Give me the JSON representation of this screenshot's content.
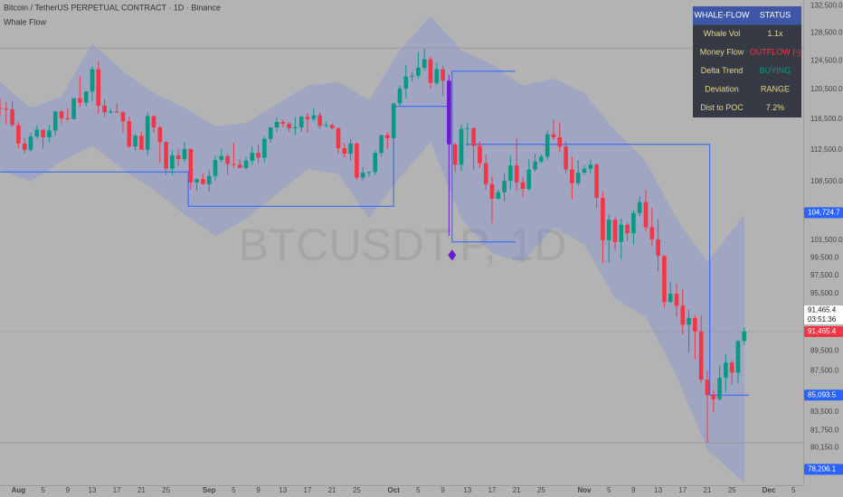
{
  "chart_data": {
    "type": "candlestick",
    "title": "Bitcoin / TetherUS PERPETUAL CONTRACT · 1D · Binance",
    "indicator": "Whale Flow",
    "watermark": "BTCUSDT.P, 1D",
    "categories": [
      null,
      null,
      null,
      "Aug",
      null,
      null,
      null,
      "5",
      null,
      null,
      null,
      "9",
      null,
      null,
      null,
      "13",
      null,
      null,
      null,
      "17",
      null,
      null,
      null,
      "21",
      null,
      null,
      null,
      "25",
      null,
      null,
      null,
      null,
      null,
      null,
      "Sep",
      null,
      null,
      null,
      "5",
      null,
      null,
      null,
      "9",
      null,
      null,
      null,
      "13",
      null,
      null,
      null,
      "17",
      null,
      null,
      null,
      "21",
      null,
      null,
      null,
      "25",
      null,
      null,
      null,
      null,
      null,
      "Oct",
      null,
      null,
      null,
      "5",
      null,
      null,
      null,
      "9",
      null,
      null,
      null,
      "13",
      null,
      null,
      null,
      "17",
      null,
      null,
      null,
      "21",
      null,
      null,
      null,
      "25",
      null,
      null,
      null,
      null,
      null,
      null,
      "Nov",
      null,
      null,
      null,
      "5",
      null,
      null,
      null,
      "9",
      null,
      null,
      null,
      "13",
      null,
      null,
      null,
      "17",
      null,
      null,
      null,
      "21",
      null,
      null,
      null,
      "25",
      null,
      null,
      null,
      null,
      null,
      "Dec",
      null,
      null,
      null,
      "5"
    ],
    "month_labels": [
      "Aug",
      "Sep",
      "Oct",
      "Nov",
      "Dec"
    ],
    "open": [
      118000,
      117900,
      117800,
      115700,
      113300,
      112500,
      114200,
      115100,
      114100,
      115000,
      117500,
      116600,
      116500,
      119300,
      118700,
      120200,
      123300,
      118300,
      117400,
      117500,
      117400,
      116200,
      112900,
      114300,
      112500,
      116900,
      115400,
      113500,
      110100,
      111800,
      111300,
      112600,
      108400,
      108800,
      108200,
      109200,
      111200,
      111700,
      110700,
      110600,
      110200,
      111100,
      112100,
      111500,
      113900,
      115400,
      116100,
      115900,
      115300,
      115400,
      116800,
      116500,
      117000,
      115600,
      115700,
      115300,
      112700,
      112000,
      113300,
      109000,
      109600,
      109700,
      112100,
      114400,
      114000,
      118600,
      120600,
      122300,
      122400,
      123500,
      124700,
      121400,
      123300,
      121700,
      113200,
      110600,
      115200,
      115300,
      113000,
      110800,
      108200,
      106400,
      107200,
      108600,
      110500,
      108400,
      107600,
      110000,
      111000,
      111600,
      114500,
      114100,
      112900,
      110000,
      108300,
      109600,
      110100,
      110600,
      106500,
      101500,
      103900,
      101300,
      103300,
      102300,
      104700,
      106000,
      103000,
      101600,
      99700,
      94600,
      95500,
      94200,
      92200,
      92900,
      91500,
      86600,
      85100,
      84700,
      86800,
      88300,
      87300,
      90500,
      null,
      null,
      null,
      null,
      null,
      null,
      null,
      null
    ],
    "high": [
      119200,
      118800,
      118900,
      116100,
      114000,
      114700,
      115700,
      115100,
      115700,
      117600,
      117700,
      117900,
      119300,
      122300,
      120300,
      123700,
      124500,
      119200,
      117900,
      118600,
      117600,
      116800,
      114600,
      114800,
      117400,
      117000,
      115600,
      113600,
      112400,
      112600,
      113500,
      112700,
      108900,
      109500,
      109900,
      111800,
      112600,
      112000,
      113400,
      111300,
      111600,
      112900,
      113200,
      114300,
      115400,
      116700,
      116400,
      116100,
      116700,
      117000,
      117300,
      117900,
      117400,
      116100,
      115900,
      115400,
      113300,
      113900,
      113500,
      110300,
      109800,
      112400,
      114400,
      114800,
      118600,
      121000,
      123900,
      122900,
      125700,
      126200,
      125100,
      124200,
      123800,
      122500,
      113400,
      115800,
      116000,
      115400,
      113600,
      111900,
      109200,
      107500,
      109500,
      111700,
      114000,
      109100,
      111300,
      112000,
      111900,
      115000,
      116400,
      116100,
      113600,
      111600,
      111200,
      110500,
      111200,
      110800,
      107300,
      104500,
      104200,
      104000,
      103500,
      105000,
      106700,
      107500,
      105300,
      104000,
      99800,
      96800,
      96600,
      96000,
      93800,
      93200,
      93200,
      87500,
      85600,
      88000,
      89200,
      88500,
      90600,
      91900,
      null,
      null,
      null,
      null,
      null,
      null,
      null,
      null
    ],
    "low": [
      116900,
      115800,
      115500,
      112700,
      112000,
      112200,
      114000,
      112600,
      113400,
      114300,
      115900,
      116300,
      116500,
      118100,
      118200,
      118900,
      117200,
      116800,
      117200,
      117300,
      114700,
      112700,
      112400,
      112600,
      111700,
      114700,
      110800,
      109300,
      109300,
      110400,
      110900,
      107500,
      107400,
      108100,
      107300,
      108600,
      110900,
      109300,
      110200,
      110200,
      110000,
      110600,
      110800,
      110900,
      113400,
      114800,
      115400,
      114800,
      114400,
      114800,
      114700,
      116200,
      115200,
      115400,
      115100,
      112000,
      111500,
      111100,
      108700,
      108600,
      109100,
      109300,
      111600,
      112600,
      113900,
      118200,
      119300,
      121600,
      122000,
      123100,
      120600,
      121100,
      119600,
      102000,
      109600,
      109800,
      113000,
      110000,
      110200,
      107500,
      103500,
      106300,
      106100,
      107500,
      107400,
      106600,
      107400,
      109700,
      110800,
      111200,
      113800,
      112200,
      109500,
      106300,
      108000,
      109400,
      109500,
      105300,
      98900,
      98900,
      100300,
      99300,
      101400,
      101000,
      104300,
      102500,
      100800,
      98000,
      94000,
      94500,
      93000,
      91200,
      89300,
      88600,
      86300,
      80600,
      83500,
      84600,
      85300,
      86100,
      86300,
      90100,
      null,
      null,
      null,
      null,
      null,
      null,
      null,
      null
    ],
    "close": [
      117900,
      117800,
      115700,
      113300,
      112500,
      114200,
      115100,
      114100,
      115000,
      117500,
      116600,
      116500,
      119300,
      118700,
      120200,
      123300,
      118300,
      117400,
      117500,
      117400,
      116200,
      112900,
      114300,
      112500,
      116900,
      115400,
      113500,
      110100,
      111800,
      111300,
      112600,
      108400,
      108800,
      108200,
      109200,
      111200,
      111700,
      110700,
      110600,
      110200,
      111100,
      112100,
      111500,
      113900,
      115400,
      116100,
      115900,
      115300,
      115400,
      116800,
      116500,
      117000,
      115600,
      115700,
      115300,
      112700,
      112000,
      113300,
      109000,
      109600,
      109700,
      112100,
      114400,
      114000,
      118600,
      120600,
      122300,
      122400,
      123500,
      124700,
      121400,
      123300,
      121700,
      113200,
      110600,
      115200,
      115300,
      113000,
      110800,
      108200,
      106400,
      107200,
      108600,
      110500,
      108400,
      107600,
      110000,
      111000,
      111600,
      114500,
      114100,
      112900,
      110000,
      108300,
      109600,
      110100,
      110600,
      106500,
      101500,
      103900,
      101300,
      103300,
      102300,
      104700,
      106000,
      103000,
      101600,
      99700,
      94600,
      95500,
      94200,
      92200,
      92900,
      91500,
      86600,
      85100,
      84700,
      86800,
      88300,
      87300,
      90500,
      91500,
      null,
      null,
      null,
      null,
      null,
      null,
      null,
      null
    ],
    "up_color": "#089981",
    "down_color": "#f23645",
    "highlight": {
      "index": 73,
      "color": "#6a1bd1"
    },
    "log_scale": true,
    "grid": false,
    "ylim": [
      76800,
      133400
    ],
    "yticks": [
      {
        "value": 132500,
        "label": "132,500.0"
      },
      {
        "value": 128500,
        "label": "128,500.0"
      },
      {
        "value": 124500,
        "label": "124,500.0"
      },
      {
        "value": 120500,
        "label": "120,500.0"
      },
      {
        "value": 116500,
        "label": "116,500.0"
      },
      {
        "value": 112500,
        "label": "112,500.0"
      },
      {
        "value": 108500,
        "label": "108,500.0"
      },
      {
        "value": 101500,
        "label": "101,500.0"
      },
      {
        "value": 99500,
        "label": "99,500.0"
      },
      {
        "value": 97500,
        "label": "97,500.0"
      },
      {
        "value": 95500,
        "label": "95,500.0"
      },
      {
        "value": 89500,
        "label": "89,500.0"
      },
      {
        "value": 87500,
        "label": "87,500.0"
      },
      {
        "value": 83500,
        "label": "83,500.0"
      },
      {
        "value": 81750,
        "label": "81,750.0"
      },
      {
        "value": 80150,
        "label": "80,150.0"
      }
    ],
    "envelope": {
      "color": "rgba(110,130,230,0.28)",
      "x": [
        0,
        5,
        10,
        15,
        20,
        25,
        30,
        35,
        40,
        45,
        50,
        55,
        60,
        65,
        70,
        75,
        80,
        85,
        90,
        95,
        100,
        105,
        110,
        115,
        121
      ],
      "upper": [
        121500,
        118000,
        119500,
        127000,
        123000,
        120000,
        118000,
        115500,
        116000,
        118500,
        121000,
        121500,
        119000,
        126000,
        131000,
        126000,
        124000,
        121000,
        122000,
        120000,
        115000,
        111000,
        104000,
        99000,
        104500
      ],
      "lower": [
        110000,
        108500,
        111000,
        113000,
        110000,
        107500,
        104500,
        102000,
        104000,
        107000,
        110000,
        109500,
        104000,
        109000,
        113500,
        104000,
        100000,
        99000,
        103000,
        101000,
        95000,
        93000,
        87000,
        80000,
        77000
      ]
    },
    "level_color": "#2962ff",
    "levels": [
      {
        "x": [
          0,
          30.6,
          30.6,
          64,
          64,
          73.5
        ],
        "y": [
          109700,
          109700,
          105500,
          105500,
          118200,
          118200
        ]
      },
      {
        "x": [
          83.8,
          73.5,
          73.5,
          83.8
        ],
        "y": [
          123000,
          123000,
          101300,
          101300
        ]
      },
      {
        "x": [
          75.7,
          115.4,
          115.4,
          121.8
        ],
        "y": [
          113200,
          113200,
          85100,
          85100
        ]
      }
    ],
    "ref_lines": [
      126300,
      80600
    ],
    "marker": {
      "x": 73.5,
      "value": 99800,
      "color": "#6a1bd1"
    },
    "price_labels": [
      {
        "value": 104724.7,
        "label": "104,724.7",
        "color": "#2962ff"
      },
      {
        "value": 85093.5,
        "label": "85,093.5",
        "color": "#2962ff"
      },
      {
        "value": 78206.1,
        "label": "78,206.1",
        "color": "#2962ff"
      }
    ],
    "current": {
      "value": 91465.4,
      "label": "91,465.4",
      "countdown": "03:51:36",
      "color": "#f23645"
    },
    "table": {
      "header": [
        "WHALE-FLOW",
        "STATUS"
      ],
      "rows": [
        [
          "Whale Vol",
          "1.1x"
        ],
        [
          "Money Flow",
          "OUTFLOW (-)"
        ],
        [
          "Delta Trend",
          "BUYING"
        ],
        [
          "Deviation",
          "RANGE"
        ],
        [
          "Dist to POC",
          "7.2%"
        ]
      ],
      "value_colors": [
        "#e6d68c",
        "#f23645",
        "#089981",
        "#e6d68c",
        "#e6d68c"
      ],
      "label_color": "#e6d68c"
    }
  }
}
